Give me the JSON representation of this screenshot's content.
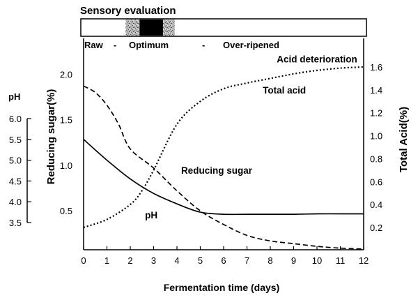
{
  "chart_data": {
    "type": "line",
    "sensory": {
      "title": "Sensory evaluation",
      "stages": [
        "Raw",
        "-",
        "Optimum",
        "-",
        "Over-ripened"
      ],
      "optimum_window_days": [
        1.8,
        3.9
      ],
      "optimum_core_days": [
        2.4,
        3.4
      ]
    },
    "xlabel": "Fermentation time (days)",
    "xlim": [
      0,
      12
    ],
    "xticks": [
      0,
      1,
      2,
      3,
      4,
      5,
      6,
      7,
      8,
      9,
      10,
      11,
      12
    ],
    "axes": {
      "reducing_sugar": {
        "label": "Reducing sugar(%)",
        "range": [
          0.08,
          2.08
        ],
        "ticks": [
          "0.5",
          "1.0",
          "1.5",
          "2.0"
        ]
      },
      "ph": {
        "label": "pH",
        "range": [
          3.5,
          6.0
        ],
        "ticks": [
          "3.5",
          "4.0",
          "4.5",
          "5.0",
          "5.5",
          "6.0"
        ]
      },
      "total_acid": {
        "label": "Total Acid(%)",
        "range": [
          0.2,
          1.6
        ],
        "ticks": [
          "0.2",
          "0.4",
          "0.6",
          "0.8",
          "1.0",
          "1.2",
          "1.4",
          "1.6"
        ]
      }
    },
    "series": [
      {
        "name": "Reducing sugar",
        "axis": "reducing_sugar",
        "style": "dashed",
        "x": [
          0,
          0.5,
          1,
          1.5,
          2,
          3,
          4,
          5,
          6,
          7,
          8,
          9,
          10,
          11,
          12
        ],
        "values": [
          1.87,
          1.8,
          1.66,
          1.45,
          1.18,
          0.97,
          0.72,
          0.5,
          0.35,
          0.23,
          0.17,
          0.14,
          0.11,
          0.09,
          0.08
        ]
      },
      {
        "name": "pH",
        "axis": "ph",
        "style": "solid",
        "x": [
          0,
          1,
          2,
          3,
          4,
          5,
          6,
          7,
          8,
          9,
          10,
          11,
          12
        ],
        "values": [
          5.5,
          5.0,
          4.55,
          4.2,
          3.95,
          3.75,
          3.7,
          3.7,
          3.7,
          3.7,
          3.71,
          3.71,
          3.71
        ]
      },
      {
        "name": "Total acid",
        "axis": "total_acid",
        "style": "dotted",
        "x": [
          0,
          1,
          2,
          2.5,
          3,
          4,
          5,
          6,
          7,
          8,
          9,
          10,
          11,
          12
        ],
        "values": [
          0.2,
          0.27,
          0.4,
          0.52,
          0.7,
          1.1,
          1.3,
          1.41,
          1.46,
          1.5,
          1.54,
          1.57,
          1.59,
          1.6
        ]
      }
    ],
    "annotations": [
      {
        "text": "Acid deterioration",
        "x": 10.0,
        "axis": "total_acid",
        "y": 1.64
      },
      {
        "text": "Total acid",
        "x": 8.6,
        "axis": "total_acid",
        "y": 1.37
      },
      {
        "text": "Reducing sugar",
        "x": 5.7,
        "axis": "total_acid",
        "y": 0.67
      },
      {
        "text": "pH",
        "x": 2.9,
        "axis": "total_acid",
        "y": 0.28
      }
    ]
  }
}
